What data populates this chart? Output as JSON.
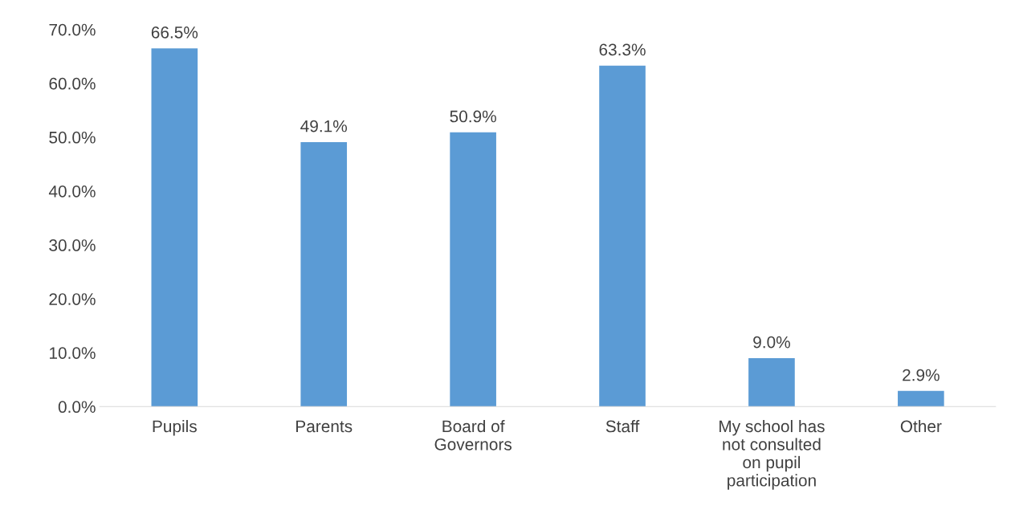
{
  "chart_data": {
    "type": "bar",
    "categories": [
      "Pupils",
      "Parents",
      "Board of\nGovernors",
      "Staff",
      "My school has\nnot consulted\non pupil\nparticipation",
      "Other"
    ],
    "values": [
      66.5,
      49.1,
      50.9,
      63.3,
      9.0,
      2.9
    ],
    "value_labels": [
      "66.5%",
      "49.1%",
      "50.9%",
      "63.3%",
      "9.0%",
      "2.9%"
    ],
    "color": "#5b9bd5",
    "ylim": [
      0,
      70
    ],
    "yticks": [
      {
        "value": 0,
        "label": "0.0%"
      },
      {
        "value": 10,
        "label": "10.0%"
      },
      {
        "value": 20,
        "label": "20.0%"
      },
      {
        "value": 30,
        "label": "30.0%"
      },
      {
        "value": 40,
        "label": "40.0%"
      },
      {
        "value": 50,
        "label": "50.0%"
      },
      {
        "value": 60,
        "label": "60.0%"
      },
      {
        "value": 70,
        "label": "70.0%"
      }
    ],
    "grid": false,
    "legend": false
  }
}
